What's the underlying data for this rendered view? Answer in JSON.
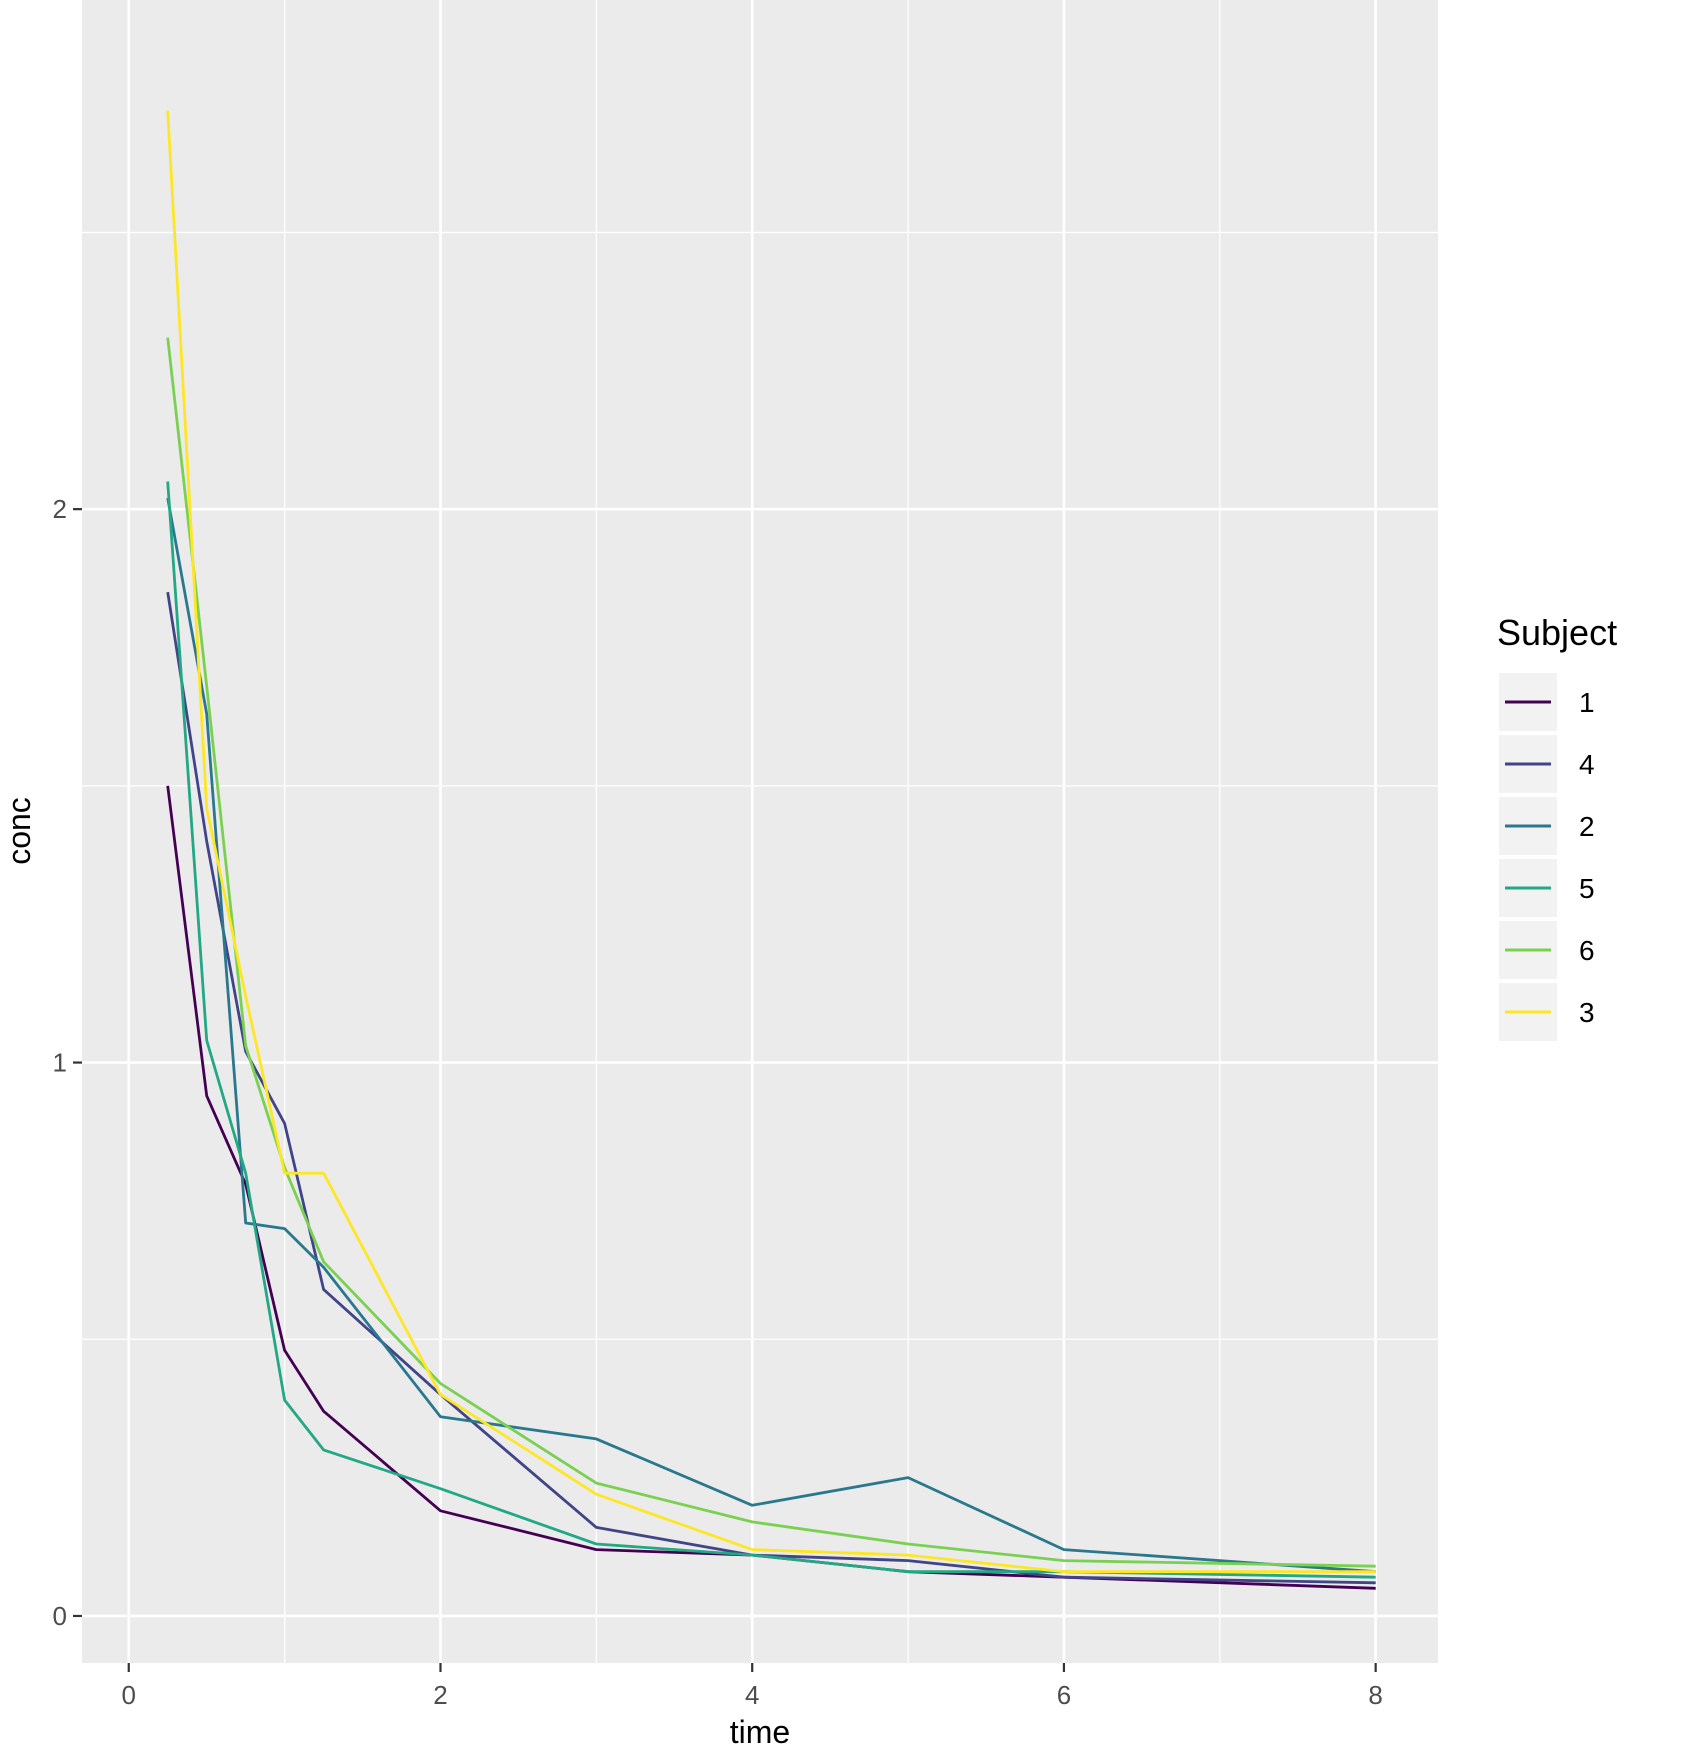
{
  "chart_data": {
    "type": "line",
    "xlabel": "time",
    "ylabel": "conc",
    "xlim": [
      -0.3,
      8.4
    ],
    "ylim": [
      -0.085,
      2.92
    ],
    "x_ticks": [
      0,
      2,
      4,
      6,
      8
    ],
    "y_ticks": [
      0,
      1,
      2
    ],
    "grid": true,
    "legend": {
      "title": "Subject",
      "placement": "right"
    },
    "series": [
      {
        "name": "1",
        "color": "#440154",
        "x": [
          0.25,
          0.5,
          0.75,
          1,
          1.25,
          2,
          3,
          4,
          5,
          6,
          8
        ],
        "y": [
          1.5,
          0.94,
          0.78,
          0.48,
          0.37,
          0.19,
          0.12,
          0.11,
          0.08,
          0.07,
          0.05
        ]
      },
      {
        "name": "4",
        "color": "#414487",
        "x": [
          0.25,
          0.5,
          0.75,
          1,
          1.25,
          2,
          3,
          4,
          5,
          6,
          8
        ],
        "y": [
          1.85,
          1.4,
          1.02,
          0.89,
          0.59,
          0.4,
          0.16,
          0.11,
          0.1,
          0.07,
          0.06
        ]
      },
      {
        "name": "2",
        "color": "#2A788E",
        "x": [
          0.25,
          0.5,
          0.75,
          1,
          1.25,
          2,
          3,
          4,
          5,
          6,
          8
        ],
        "y": [
          2.02,
          1.63,
          0.71,
          0.7,
          0.63,
          0.36,
          0.32,
          0.2,
          0.25,
          0.12,
          0.08
        ]
      },
      {
        "name": "5",
        "color": "#22A884",
        "x": [
          0.25,
          0.5,
          0.75,
          1,
          1.25,
          2,
          3,
          4,
          5,
          6,
          8
        ],
        "y": [
          2.05,
          1.04,
          0.8,
          0.39,
          0.3,
          0.23,
          0.13,
          0.11,
          0.08,
          0.08,
          0.07
        ]
      },
      {
        "name": "6",
        "color": "#7AD151",
        "x": [
          0.25,
          0.5,
          0.75,
          1,
          1.25,
          2,
          3,
          4,
          5,
          6,
          8
        ],
        "y": [
          2.31,
          1.68,
          1.03,
          0.81,
          0.64,
          0.42,
          0.24,
          0.17,
          0.13,
          0.1,
          0.09
        ]
      },
      {
        "name": "3",
        "color": "#FDE725",
        "x": [
          0.25,
          0.5,
          0.75,
          1,
          1.25,
          2,
          3,
          4,
          5,
          6,
          8
        ],
        "y": [
          2.72,
          1.46,
          1.12,
          0.8,
          0.8,
          0.4,
          0.22,
          0.12,
          0.11,
          0.08,
          0.08
        ]
      }
    ]
  }
}
